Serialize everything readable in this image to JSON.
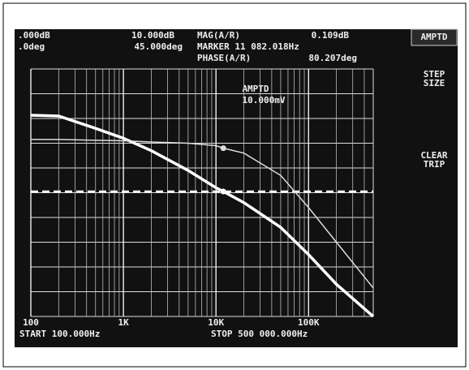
{
  "chart_data": {
    "type": "line",
    "readouts": [
      ".000dB",
      ".0deg",
      "10.000dB",
      "45.000deg",
      "MAG(A/R)",
      "0.109dB",
      "MARKER 11 082.018Hz",
      "PHASE(A/R)",
      "80.207deg"
    ],
    "softkeys": [
      "AMPTD",
      "STEP SIZE",
      "CLEAR TRIP"
    ],
    "annotation": "AMPTD",
    "annotation_value": "10.000mV",
    "start_label": "START 100.000Hz",
    "stop_label": "STOP 500 000.000Hz",
    "log_x": true,
    "grid": true,
    "xlim": [
      100,
      500000
    ],
    "xticks": [
      100,
      {
        "value": 1000,
        "label": "1K"
      },
      {
        "value": 10000,
        "label": "10K"
      },
      {
        "value": 100000,
        "label": "100K"
      }
    ],
    "ylim": [
      0,
      10
    ],
    "yticks": [
      0,
      1,
      2,
      3,
      4,
      5,
      6,
      7,
      8,
      9,
      10
    ],
    "x": [
      100,
      200,
      500,
      1000,
      2000,
      5000,
      10000,
      12000,
      20000,
      50000,
      100000,
      200000,
      500000
    ],
    "series": [
      {
        "color": "#ffffff",
        "width": 3.5,
        "marker_index": 7,
        "values": [
          8.13,
          8.1,
          7.6,
          7.2,
          6.7,
          5.9,
          5.2,
          5.05,
          4.6,
          3.6,
          2.5,
          1.3,
          0
        ]
      },
      {
        "color": "#dddddd",
        "width": 1.5,
        "marker_index": 7,
        "values": [
          7.15,
          7.15,
          7.12,
          7.1,
          7.05,
          7.0,
          6.9,
          6.8,
          6.6,
          5.7,
          4.4,
          3.0,
          1.15
        ]
      }
    ],
    "hline": 5.05,
    "hline_color": "#ffffff"
  }
}
